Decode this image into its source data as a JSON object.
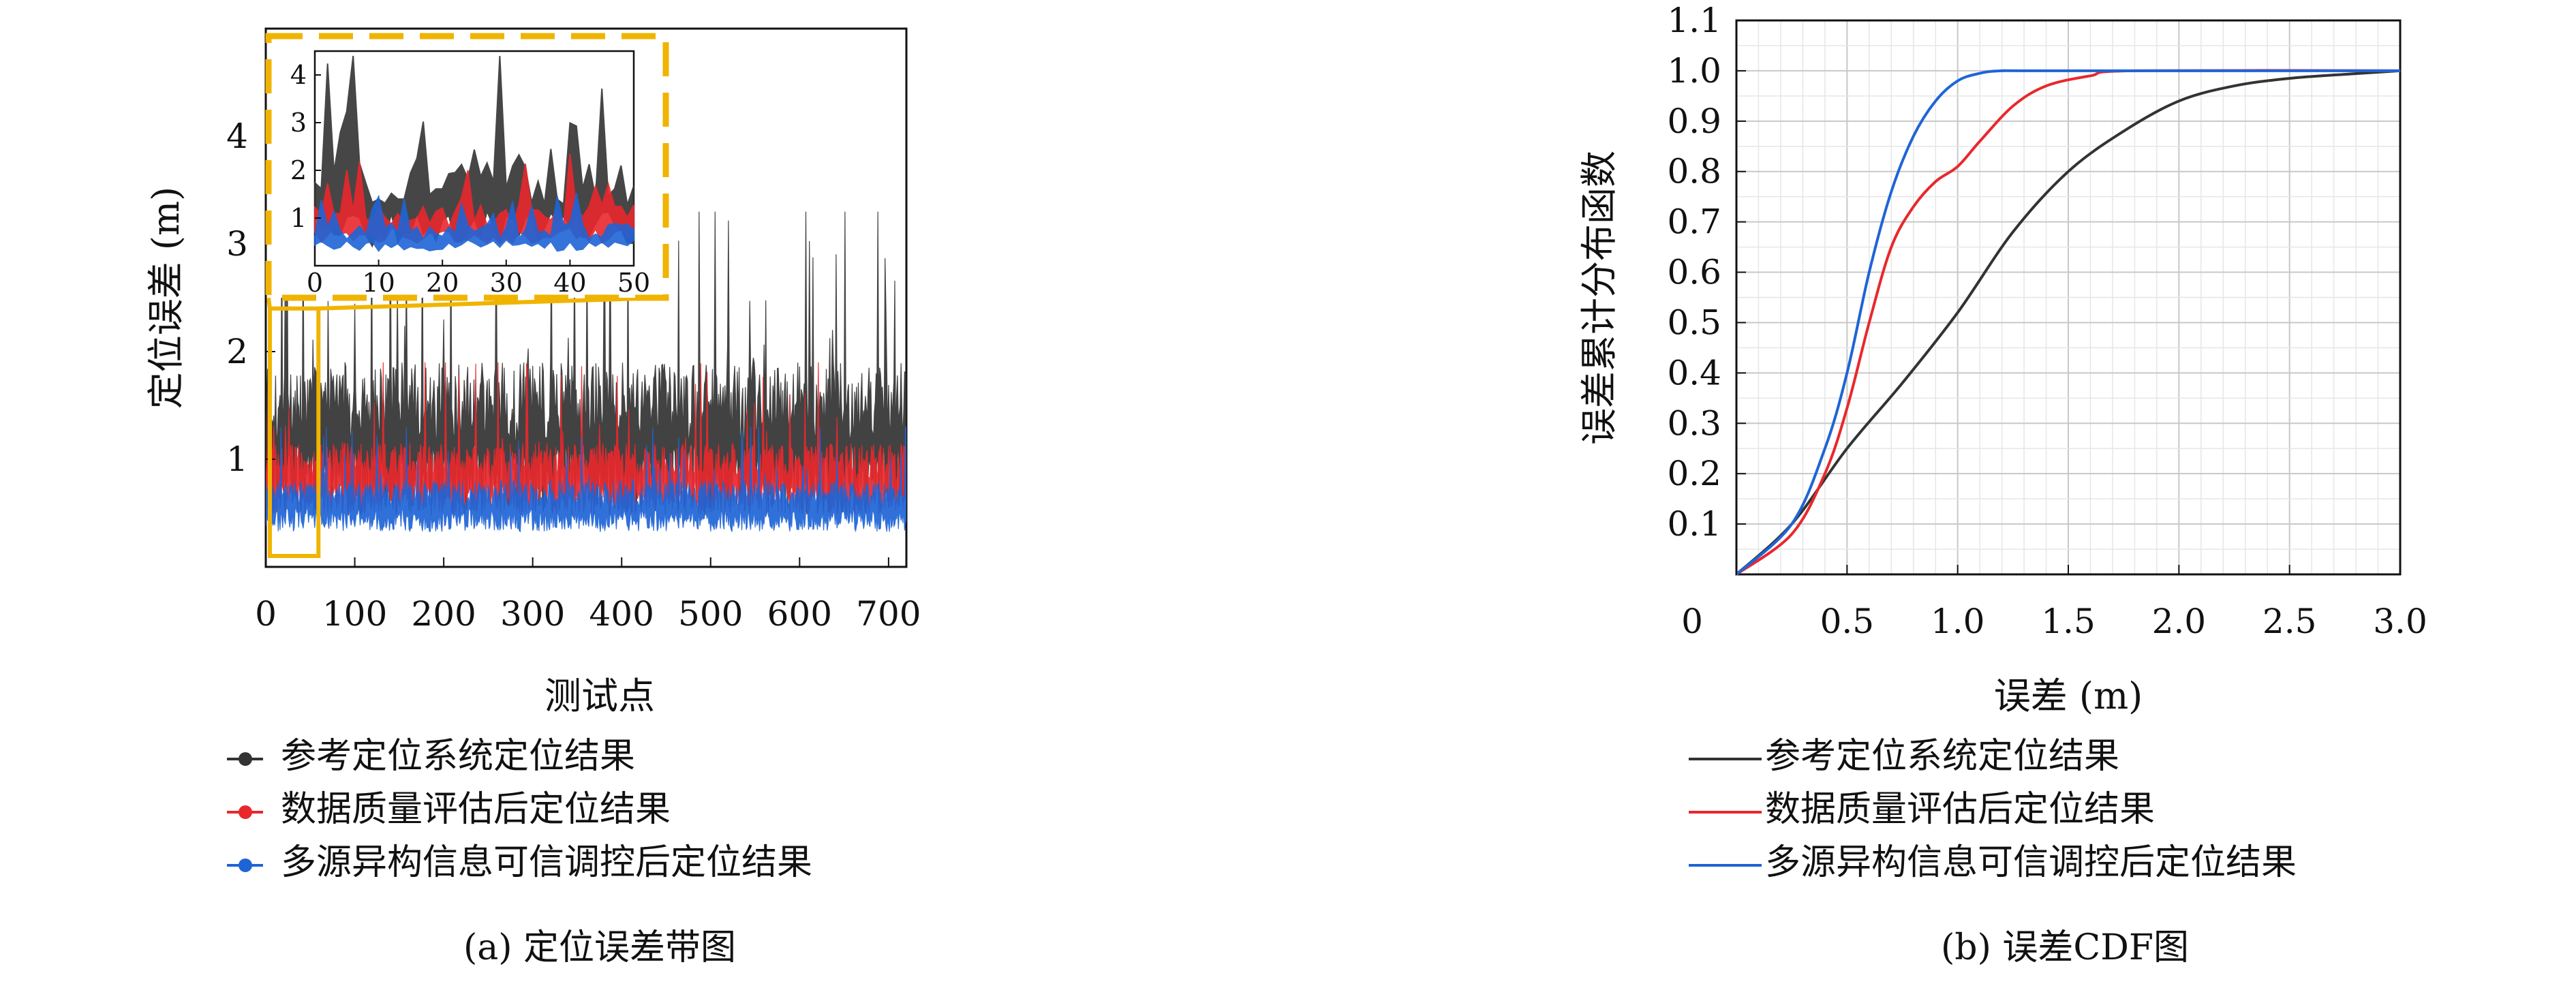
{
  "chart_data": [
    {
      "type": "line",
      "panel_caption": "(a) 定位误差带图",
      "xlabel": "测试点",
      "ylabel": "定位误差 (m)",
      "xlim": [
        0,
        720
      ],
      "ylim": [
        0,
        5
      ],
      "x_ticks": [
        0,
        100,
        200,
        300,
        400,
        500,
        600,
        700
      ],
      "y_ticks": [
        1,
        2,
        3,
        4
      ],
      "legend_position": "below",
      "series": [
        {
          "name": "参考定位系统定位结果",
          "color": "#333333",
          "mean": 1.15,
          "spread": 0.75,
          "max": 3.3
        },
        {
          "name": "数据质量评估后定位结果",
          "color": "#e8282d",
          "mean": 0.8,
          "spread": 0.35,
          "max": 1.9
        },
        {
          "name": "多源异构信息可信调控后定位结果",
          "color": "#1f64d6",
          "mean": 0.55,
          "spread": 0.25,
          "max": 1.3
        }
      ],
      "inset": {
        "xlim": [
          0,
          50
        ],
        "ylim": [
          0,
          4.5
        ],
        "x_ticks": [
          0,
          10,
          20,
          30,
          40,
          50
        ],
        "y_ticks": [
          1,
          2,
          3,
          4
        ],
        "zoom_region_x": [
          0,
          50
        ],
        "zoom_region_y": [
          0,
          2.4
        ],
        "highlight_color": "#f0b400"
      }
    },
    {
      "type": "line",
      "panel_caption": "(b) 误差CDF图",
      "xlabel": "误差 (m)",
      "ylabel": "误差累计分布函数",
      "xlim": [
        0,
        3.0
      ],
      "ylim": [
        0,
        1.1
      ],
      "x_ticks": [
        0,
        0.5,
        1.0,
        1.5,
        2.0,
        2.5,
        3.0
      ],
      "x_tick_labels": [
        "0",
        "0.5",
        "1.0",
        "1.5",
        "2.0",
        "2.5",
        "3.0"
      ],
      "y_ticks": [
        0.1,
        0.2,
        0.3,
        0.4,
        0.5,
        0.6,
        0.7,
        0.8,
        0.9,
        1.0,
        1.1
      ],
      "y_tick_labels": [
        "0.1",
        "0.2",
        "0.3",
        "0.4",
        "0.5",
        "0.6",
        "0.7",
        "0.8",
        "0.9",
        "1.0",
        "1.1"
      ],
      "grid": true,
      "legend_position": "below",
      "series": [
        {
          "name": "参考定位系统定位结果",
          "color": "#333333",
          "x": [
            0,
            0.25,
            0.5,
            0.75,
            1.0,
            1.25,
            1.5,
            1.75,
            2.0,
            2.25,
            2.5,
            2.75,
            3.0
          ],
          "y": [
            0,
            0.1,
            0.25,
            0.38,
            0.52,
            0.68,
            0.8,
            0.88,
            0.94,
            0.97,
            0.985,
            0.993,
            1.0
          ]
        },
        {
          "name": "数据质量评估后定位结果",
          "color": "#e8282d",
          "x": [
            0,
            0.25,
            0.4,
            0.5,
            0.6,
            0.7,
            0.8,
            0.9,
            1.0,
            1.1,
            1.25,
            1.4,
            1.6,
            1.8,
            3.0
          ],
          "y": [
            0,
            0.08,
            0.2,
            0.33,
            0.5,
            0.65,
            0.73,
            0.78,
            0.81,
            0.86,
            0.93,
            0.97,
            0.99,
            1.0,
            1.0
          ]
        },
        {
          "name": "多源异构信息可信调控后定位结果",
          "color": "#1f64d6",
          "x": [
            0,
            0.25,
            0.4,
            0.5,
            0.6,
            0.7,
            0.8,
            0.9,
            1.0,
            1.1,
            1.2,
            1.4,
            3.0
          ],
          "y": [
            0,
            0.1,
            0.25,
            0.4,
            0.6,
            0.76,
            0.87,
            0.94,
            0.98,
            0.995,
            1.0,
            1.0,
            1.0
          ]
        }
      ]
    }
  ]
}
